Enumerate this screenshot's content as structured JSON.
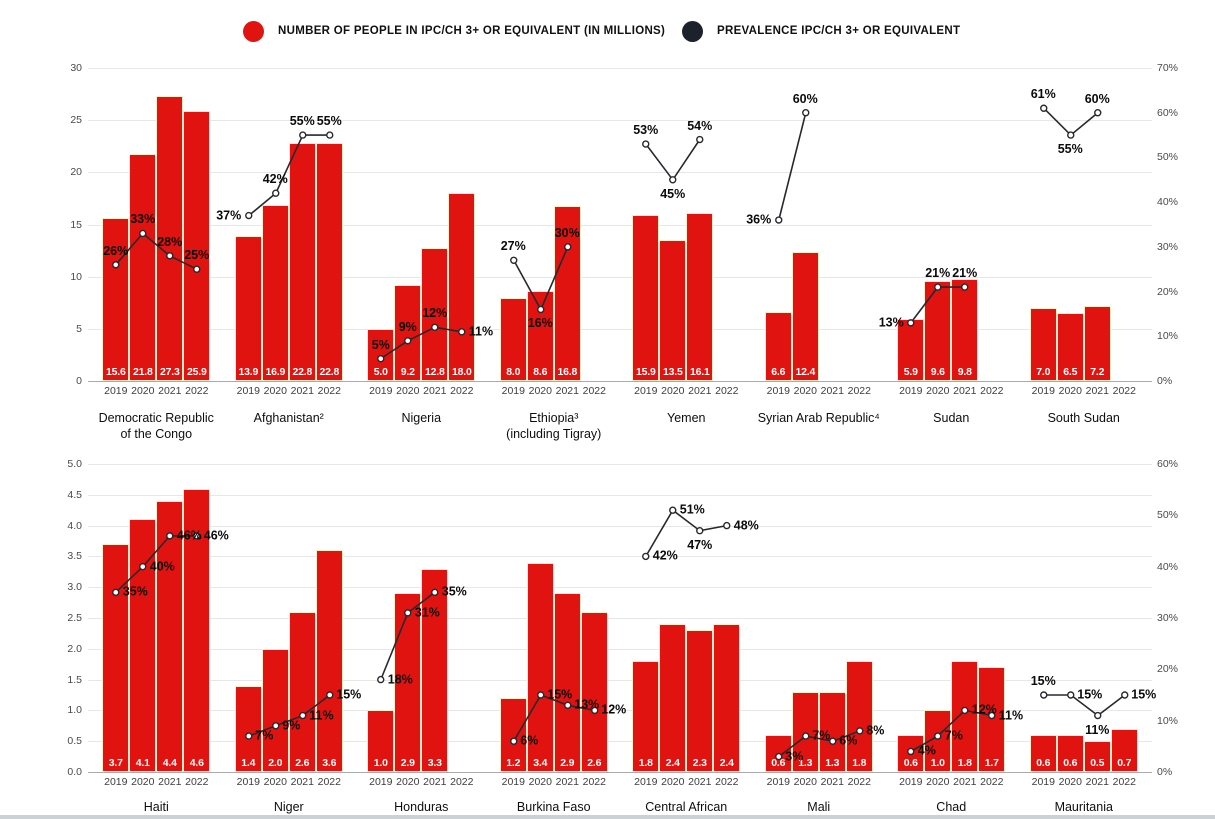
{
  "legend": {
    "people": {
      "label": "NUMBER OF PEOPLE IN IPC/CH 3+ OR EQUIVALENT (IN MILLIONS)",
      "color": "#e01310"
    },
    "prevalence": {
      "label": "PREVALENCE IPC/CH 3+ OR EQUIVALENT",
      "color": "#1c212b"
    }
  },
  "colors": {
    "bar": "#e01310",
    "bar_border": "#f7eccb",
    "line": "#26292e",
    "dot_fill": "#ffffff",
    "gridline": "#e7e7e7",
    "baseline": "#ababab"
  },
  "years": [
    "2019",
    "2020",
    "2021",
    "2022"
  ],
  "chart_data": [
    {
      "type": "bar",
      "row": "top",
      "series_units": "millions of people",
      "left_axis": {
        "ticks": [
          "0",
          "5",
          "10",
          "15",
          "20",
          "25",
          "30"
        ],
        "max": 30
      },
      "right_axis": {
        "ticks": [
          "0%",
          "10%",
          "20%",
          "30%",
          "40%",
          "50%",
          "60%",
          "70%"
        ],
        "max": 70
      },
      "grid": true,
      "countries": [
        {
          "name_lines": [
            "Democratic Republic",
            "of the Congo"
          ],
          "values": [
            15.6,
            21.8,
            27.3,
            25.9
          ],
          "prevalence": [
            26,
            33,
            28,
            25
          ],
          "label_pos": [
            "a",
            "a",
            "a",
            "a"
          ]
        },
        {
          "name_lines": [
            "Afghanistan²"
          ],
          "values": [
            13.9,
            16.9,
            22.8,
            22.8
          ],
          "prevalence": [
            37,
            42,
            55,
            55
          ],
          "label_pos": [
            "l",
            "a",
            "a",
            "a"
          ]
        },
        {
          "name_lines": [
            "Nigeria"
          ],
          "values": [
            5.0,
            9.2,
            12.8,
            18.0
          ],
          "prevalence": [
            5,
            9,
            12,
            11
          ],
          "label_pos": [
            "a",
            "a",
            "a",
            "r"
          ]
        },
        {
          "name_lines": [
            "Ethiopia³",
            "(including Tigray)"
          ],
          "values": [
            8.0,
            8.6,
            16.8,
            null
          ],
          "prevalence": [
            27,
            16,
            30,
            null
          ],
          "label_pos": [
            "a",
            "b",
            "a",
            null
          ]
        },
        {
          "name_lines": [
            "Yemen"
          ],
          "values": [
            15.9,
            13.5,
            16.1,
            null
          ],
          "prevalence": [
            53,
            45,
            54,
            null
          ],
          "label_pos": [
            "a",
            "b",
            "a",
            null
          ]
        },
        {
          "name_lines": [
            "Syrian Arab Republic⁴"
          ],
          "values": [
            6.6,
            12.4,
            null,
            null
          ],
          "prevalence": [
            36,
            60,
            null,
            null
          ],
          "label_pos": [
            "l",
            "a",
            null,
            null
          ]
        },
        {
          "name_lines": [
            "Sudan"
          ],
          "values": [
            5.9,
            9.6,
            9.8,
            null
          ],
          "prevalence": [
            13,
            21,
            21,
            null
          ],
          "label_pos": [
            "l",
            "a",
            "a",
            null
          ]
        },
        {
          "name_lines": [
            "South Sudan"
          ],
          "values": [
            7.0,
            6.5,
            7.2,
            null
          ],
          "prevalence": [
            61,
            55,
            60,
            null
          ],
          "label_pos": [
            "a",
            "b",
            "a",
            null
          ]
        }
      ]
    },
    {
      "type": "bar",
      "row": "bottom",
      "series_units": "millions of people",
      "left_axis": {
        "ticks": [
          "0.0",
          "0.5",
          "1.0",
          "1.5",
          "2.0",
          "2.5",
          "3.0",
          "3.5",
          "4.0",
          "4.5",
          "5.0"
        ],
        "max": 5
      },
      "right_axis": {
        "ticks": [
          "0%",
          "10%",
          "20%",
          "30%",
          "40%",
          "50%",
          "60%"
        ],
        "max": 60
      },
      "grid": true,
      "countries": [
        {
          "name_lines": [
            "Haiti"
          ],
          "values": [
            3.7,
            4.1,
            4.4,
            4.6
          ],
          "prevalence": [
            35,
            40,
            46,
            46
          ],
          "label_pos": [
            "r",
            "r",
            "r",
            "r"
          ]
        },
        {
          "name_lines": [
            "Niger"
          ],
          "values": [
            1.4,
            2.0,
            2.6,
            3.6
          ],
          "prevalence": [
            7,
            9,
            11,
            15
          ],
          "label_pos": [
            "r",
            "r",
            "r",
            "r"
          ]
        },
        {
          "name_lines": [
            "Honduras"
          ],
          "values": [
            1.0,
            2.9,
            3.3,
            null
          ],
          "prevalence": [
            18,
            31,
            35,
            null
          ],
          "label_pos": [
            "r",
            "r",
            "r",
            null
          ]
        },
        {
          "name_lines": [
            "Burkina Faso"
          ],
          "values": [
            1.2,
            3.4,
            2.9,
            2.6
          ],
          "prevalence": [
            6,
            15,
            13,
            12
          ],
          "label_pos": [
            "r",
            "r",
            "r",
            "r"
          ]
        },
        {
          "name_lines": [
            "Central African"
          ],
          "values": [
            1.8,
            2.4,
            2.3,
            2.4
          ],
          "prevalence": [
            42,
            51,
            47,
            48
          ],
          "label_pos": [
            "r",
            "r",
            "b",
            "r"
          ]
        },
        {
          "name_lines": [
            "Mali"
          ],
          "values": [
            0.6,
            1.3,
            1.3,
            1.8
          ],
          "prevalence": [
            3,
            7,
            6,
            8
          ],
          "label_pos": [
            "r",
            "r",
            "r",
            "r"
          ]
        },
        {
          "name_lines": [
            "Chad"
          ],
          "values": [
            0.6,
            1.0,
            1.8,
            1.7
          ],
          "prevalence": [
            4,
            7,
            12,
            11
          ],
          "label_pos": [
            "r",
            "r",
            "r",
            "r"
          ]
        },
        {
          "name_lines": [
            "Mauritania"
          ],
          "values": [
            0.6,
            0.6,
            0.5,
            0.7
          ],
          "prevalence": [
            15,
            15,
            11,
            15
          ],
          "label_pos": [
            "a",
            "r",
            "b",
            "r"
          ]
        }
      ]
    }
  ]
}
